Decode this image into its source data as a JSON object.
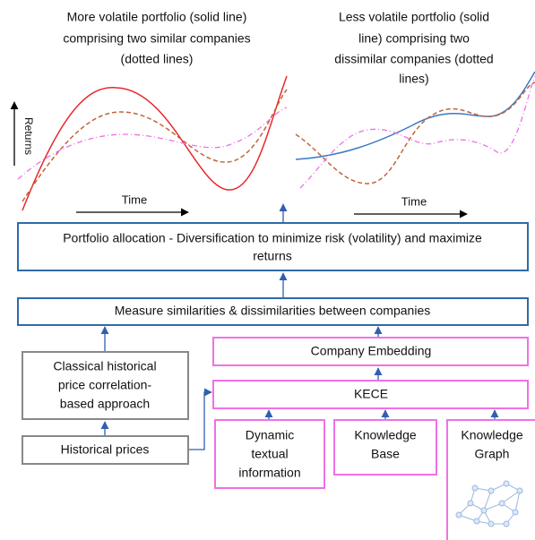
{
  "plots": {
    "left_title": [
      "More volatile portfolio (solid line)",
      "comprising two similar companies",
      "(dotted lines)"
    ],
    "right_title": [
      "Less volatile portfolio (solid",
      "line) comprising two",
      "dissimilar companies (dotted",
      "lines)"
    ],
    "y_axis_label": "Returns",
    "left_x_label": "Time",
    "right_x_label": "Time"
  },
  "boxes": {
    "portfolio_allocation": [
      "Portfolio allocation - Diversification to minimize risk (volatility) and maximize",
      "returns"
    ],
    "measure_similarities": "Measure similarities & dissimilarities between companies",
    "company_embedding": "Company Embedding",
    "kece": "KECE",
    "classical_approach": [
      "Classical historical",
      "price correlation-",
      "based approach"
    ],
    "historical_prices": "Historical prices",
    "dynamic_textual": [
      "Dynamic",
      "textual",
      "information"
    ],
    "knowledge_base": [
      "Knowledge",
      "Base"
    ],
    "knowledge_graph": [
      "Knowledge",
      "Graph"
    ]
  }
}
